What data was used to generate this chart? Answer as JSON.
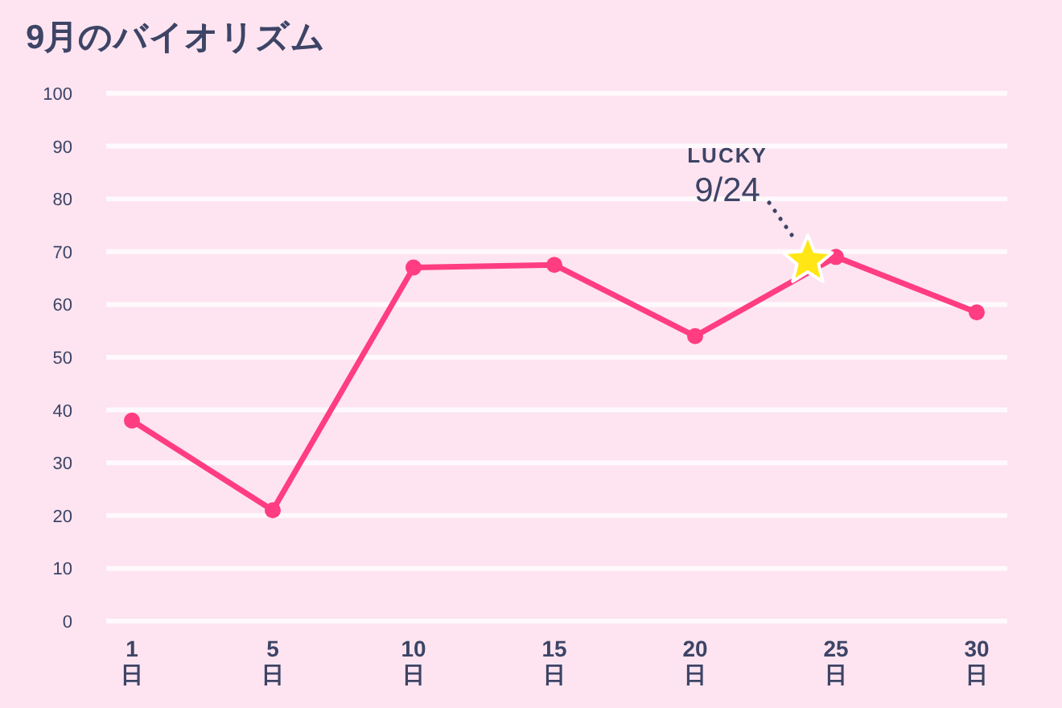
{
  "chart_data": {
    "type": "line",
    "title": "9月のバイオリズム",
    "categories": [
      "1\n日",
      "5\n日",
      "10\n日",
      "15\n日",
      "20\n日",
      "25\n日",
      "30\n日"
    ],
    "series": [
      {
        "color": "#ff3d80",
        "values": [
          38,
          21,
          67,
          67.5,
          54,
          69,
          58.5
        ]
      }
    ],
    "ylim": [
      0,
      100
    ],
    "yticks": [
      0,
      10,
      20,
      30,
      40,
      50,
      60,
      70,
      80,
      90,
      100
    ],
    "grid": "y",
    "marker": "circle",
    "line_style": "solid",
    "annotations": [
      "LUCKY",
      "9/24"
    ]
  }
}
